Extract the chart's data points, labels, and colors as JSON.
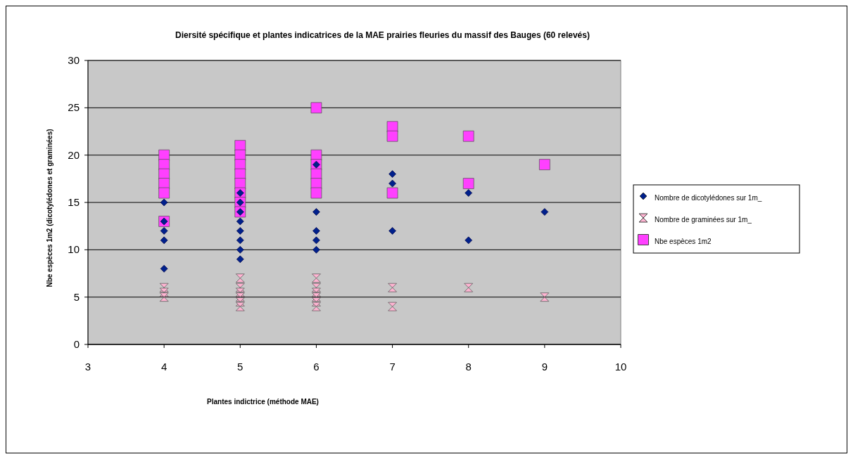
{
  "chart_data": {
    "type": "scatter",
    "title": "Diersité spécifique et plantes indicatrices de la MAE prairies fleuries du massif des Bauges (60 relevés)",
    "xlabel": "Plantes indictrice (méthode MAE)",
    "ylabel": "Nbe espèces 1m2 (dicotylédones et graminées)",
    "xlim": [
      3,
      10
    ],
    "xticks": [
      3,
      4,
      5,
      6,
      7,
      8,
      9,
      10
    ],
    "ylim": [
      0,
      30
    ],
    "yticks": [
      0,
      5,
      10,
      15,
      20,
      25,
      30
    ],
    "grid": "y",
    "legend": "right",
    "series": [
      {
        "name": "Nombre de dicotylédones sur 1m_",
        "color": "#00208c",
        "marker": "diamond",
        "x": [
          4,
          4,
          4,
          4,
          4,
          5,
          5,
          5,
          5,
          5,
          5,
          5,
          5,
          6,
          6,
          6,
          6,
          6,
          7,
          7,
          7,
          8,
          8,
          9
        ],
        "values": [
          15,
          13,
          12,
          11,
          8,
          16,
          15,
          14,
          13,
          12,
          11,
          10,
          9,
          19,
          14,
          12,
          11,
          10,
          18,
          17,
          12,
          16,
          11,
          14
        ]
      },
      {
        "name": "Nombre de graminées sur 1m_",
        "color": "#ffb4d2",
        "marker": "triangle",
        "x": [
          4,
          4,
          4,
          5,
          5,
          5,
          5,
          5,
          5,
          6,
          6,
          6,
          6,
          6,
          6,
          7,
          7,
          8,
          9
        ],
        "values": [
          6,
          5.5,
          5,
          7,
          6,
          5.5,
          5,
          4.5,
          4,
          7,
          6,
          5.5,
          5,
          4.5,
          4,
          6,
          4,
          6,
          5
        ]
      },
      {
        "name": "Nbe espèces 1m2",
        "color": "#ff40ff",
        "marker": "square",
        "x": [
          4,
          4,
          4,
          4,
          4,
          4,
          5,
          5,
          5,
          5,
          5,
          5,
          5,
          5,
          6,
          6,
          6,
          6,
          6,
          6,
          7,
          7,
          7,
          8,
          8,
          9
        ],
        "values": [
          20,
          19,
          18,
          17,
          16,
          13,
          21,
          20,
          19,
          18,
          17,
          16,
          15,
          14,
          25,
          20,
          19,
          18,
          17,
          16,
          23,
          22,
          16,
          22,
          17,
          19
        ]
      }
    ]
  }
}
